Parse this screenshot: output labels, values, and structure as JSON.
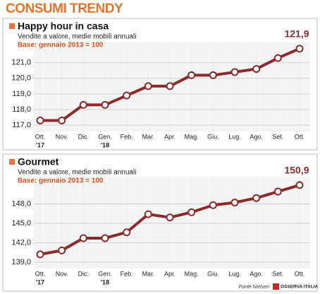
{
  "title": "CONSUMI TRENDY",
  "source": "Fonte Nielsen",
  "logo": "OSSERVA ITALIA",
  "chart_data": [
    {
      "type": "line",
      "title": "Happy hour in casa",
      "subtitle": "Vendite a valore, medie mobili annuali",
      "note": "Base: gennaio 2013 = 100",
      "categories": [
        "Ott.",
        "Nov.",
        "Dic.",
        "Gen.",
        "Feb.",
        "Mar.",
        "Apr.",
        "Mag.",
        "Giu.",
        "Lug.",
        "Ago.",
        "Set.",
        "Ott."
      ],
      "category_years": [
        "'17",
        null,
        null,
        "'18",
        null,
        null,
        null,
        null,
        null,
        null,
        null,
        null,
        null
      ],
      "values": [
        117.3,
        117.3,
        118.3,
        118.3,
        118.9,
        119.5,
        119.5,
        120.2,
        120.2,
        120.4,
        120.6,
        121.3,
        121.9
      ],
      "value_labels": [
        null,
        null,
        null,
        null,
        null,
        null,
        null,
        null,
        null,
        null,
        null,
        null,
        "121,9"
      ],
      "color": "#8c2b2b",
      "ylim": [
        116.6,
        122.3
      ],
      "yticks": [
        {
          "value": 117,
          "label": "117,0"
        },
        {
          "value": 118,
          "label": "118,0"
        },
        {
          "value": 119,
          "label": "119,0"
        },
        {
          "value": 120,
          "label": "120,0"
        },
        {
          "value": 121,
          "label": "121,0"
        }
      ],
      "grid": true
    },
    {
      "type": "line",
      "title": "Gourmet",
      "subtitle": "Vendite a valore, medie mobili annuali",
      "note": "Base: gennaio 2013 = 100",
      "categories": [
        "Ott.",
        "Nov.",
        "Dic.",
        "Gen.",
        "Feb.",
        "Mar.",
        "Apr.",
        "Mag.",
        "Giu.",
        "Lug.",
        "Ago.",
        "Set.",
        "Ott."
      ],
      "category_years": [
        "'17",
        null,
        null,
        "'18",
        null,
        null,
        null,
        null,
        null,
        null,
        null,
        null,
        null
      ],
      "values": [
        140.2,
        140.8,
        142.7,
        142.7,
        143.6,
        146.4,
        145.9,
        146.7,
        147.8,
        148.2,
        148.9,
        149.9,
        150.9
      ],
      "value_labels": [
        null,
        null,
        null,
        null,
        null,
        null,
        null,
        null,
        null,
        null,
        null,
        null,
        "150,9"
      ],
      "color": "#8c2b2b",
      "ylim": [
        138.0,
        152.2
      ],
      "yticks": [
        {
          "value": 139,
          "label": "139,0"
        },
        {
          "value": 142,
          "label": "142,0"
        },
        {
          "value": 145,
          "label": "145,0"
        },
        {
          "value": 148,
          "label": "148,0"
        }
      ],
      "grid": true
    }
  ]
}
